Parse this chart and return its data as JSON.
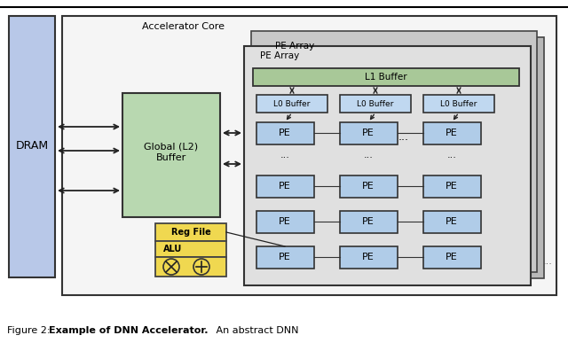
{
  "dram_color": "#b8c8e8",
  "accel_core_bg": "#f0f0f0",
  "pe_array_outer1_bg": "#c8c8c8",
  "pe_array_outer2_bg": "#d8d8d8",
  "pe_array_inner_bg": "#e4e4e4",
  "l1_buffer_color": "#a8c898",
  "l0_buffer_color": "#c0d8f0",
  "pe_color": "#b0cce8",
  "global_l2_color": "#b8d8b0",
  "reg_file_color": "#f0d850",
  "white": "#ffffff",
  "border_dark": "#222222",
  "border_mid": "#444444",
  "caption": "Figure 2: ",
  "caption_bold": "Example of DNN Accelerator.",
  "caption_rest": " An abstract DNN"
}
